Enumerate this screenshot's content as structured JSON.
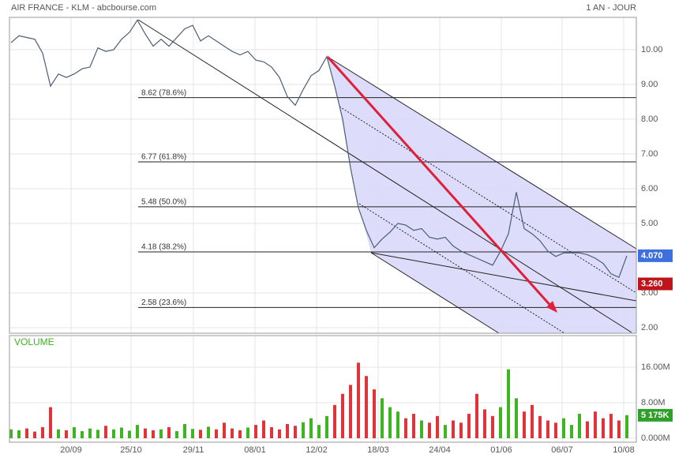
{
  "chart_data": [
    {
      "type": "line",
      "title": "AIR FRANCE - KLM - abcbourse.com",
      "subtitle": "1 AN - JOUR",
      "color": "#4a5d75",
      "x": [
        0,
        1,
        2,
        3,
        4,
        5,
        6,
        7,
        8,
        9,
        10,
        11,
        12,
        13,
        14,
        15,
        16,
        17,
        18,
        19,
        20,
        21,
        22,
        23,
        24,
        25,
        26,
        27,
        28,
        29,
        30,
        31,
        32,
        33,
        34,
        35,
        36,
        37,
        38,
        39,
        40,
        41,
        42,
        43,
        44,
        45,
        46,
        47,
        48,
        49,
        50,
        51,
        52,
        53,
        54,
        55,
        56,
        57,
        58,
        59,
        60,
        61,
        62,
        63,
        64,
        65,
        66,
        67,
        68,
        69,
        70,
        71,
        72,
        73,
        74,
        75,
        76,
        77,
        78
      ],
      "values": [
        10.2,
        10.4,
        10.35,
        10.3,
        9.9,
        8.95,
        9.3,
        9.2,
        9.3,
        9.45,
        9.5,
        10.05,
        9.95,
        10.0,
        10.3,
        10.5,
        10.85,
        10.45,
        10.1,
        10.3,
        10.1,
        10.35,
        10.6,
        10.7,
        10.25,
        10.4,
        10.25,
        10.1,
        9.95,
        9.85,
        9.95,
        9.7,
        9.65,
        9.5,
        9.2,
        8.65,
        8.4,
        8.85,
        9.25,
        9.4,
        9.8,
        8.95,
        8.0,
        6.6,
        5.45,
        4.8,
        4.3,
        4.55,
        4.75,
        5.0,
        4.95,
        4.8,
        4.85,
        4.6,
        4.55,
        4.6,
        4.35,
        4.2,
        4.1,
        4.0,
        3.9,
        3.8,
        4.2,
        4.7,
        5.9,
        4.85,
        4.7,
        4.5,
        4.2,
        4.05,
        4.15,
        4.15,
        4.15,
        4.1,
        4.0,
        3.85,
        3.55,
        3.45,
        4.07
      ],
      "xlim": [
        0,
        78.6
      ],
      "xticks": [
        {
          "value": 7.6,
          "label": "20/09"
        },
        {
          "value": 15.2,
          "label": "25/10"
        },
        {
          "value": 23.1,
          "label": "29/11"
        },
        {
          "value": 30.9,
          "label": "08/01"
        },
        {
          "value": 38.7,
          "label": "12/02"
        },
        {
          "value": 46.5,
          "label": "18/03"
        },
        {
          "value": 54.3,
          "label": "24/04"
        },
        {
          "value": 62.1,
          "label": "01/06"
        },
        {
          "value": 69.8,
          "label": "06/07"
        },
        {
          "value": 77.6,
          "label": "10/08"
        }
      ],
      "ylim": [
        1.84,
        10.93
      ],
      "yticks": [
        {
          "value": 2,
          "label": "2.00"
        },
        {
          "value": 3,
          "label": "3.00"
        },
        {
          "value": 5,
          "label": "5.00"
        },
        {
          "value": 6,
          "label": "6.00"
        },
        {
          "value": 7,
          "label": "7.00"
        },
        {
          "value": 8,
          "label": "8.00"
        },
        {
          "value": 9,
          "label": "9.00"
        },
        {
          "value": 10,
          "label": "10.00"
        }
      ],
      "fib_start_x": 16.1,
      "fib_levels": [
        {
          "value": 8.62,
          "label": "8.62  (78.6%)"
        },
        {
          "value": 6.77,
          "label": "6.77  (61.8%)"
        },
        {
          "value": 5.48,
          "label": "5.48  (50.0%)"
        },
        {
          "value": 4.18,
          "label": "4.18  (38.2%)"
        },
        {
          "value": 2.58,
          "label": "2.58  (23.6%)"
        }
      ],
      "last_value": {
        "value": 4.07,
        "label": "4.070",
        "color": "#3d6fe0"
      },
      "marker_value": {
        "value": 3.26,
        "label": "3.260",
        "color": "#c0141c"
      },
      "grid": true
    },
    {
      "type": "bar",
      "title": "VOLUME",
      "up_color": "#3cb521",
      "down_color": "#e0343a",
      "values": [
        2.0,
        1.8,
        2.2,
        1.5,
        2.5,
        7.0,
        2.0,
        1.8,
        2.5,
        1.6,
        2.2,
        1.9,
        2.8,
        2.0,
        2.4,
        1.7,
        3.0,
        2.2,
        1.8,
        2.0,
        2.5,
        1.6,
        3.2,
        2.1,
        1.9,
        2.6,
        2.0,
        3.5,
        2.2,
        1.8,
        2.4,
        3.0,
        4.0,
        2.5,
        2.0,
        3.2,
        2.8,
        3.6,
        4.5,
        3.0,
        5.0,
        7.5,
        10.0,
        12.0,
        17.0,
        14.0,
        11.0,
        9.0,
        7.0,
        6.0,
        4.5,
        5.5,
        4.0,
        3.5,
        5.0,
        3.0,
        4.0,
        3.5,
        5.5,
        10.0,
        6.5,
        5.0,
        7.0,
        15.5,
        9.0,
        6.0,
        7.5,
        5.0,
        4.0,
        3.5,
        4.5,
        3.0,
        5.5,
        3.8,
        6.0,
        4.5,
        5.5,
        4.0,
        5.2
      ],
      "ylim": [
        0,
        23.1
      ],
      "yticks": [
        {
          "value": 0,
          "label": "0.000M"
        },
        {
          "value": 8,
          "label": "8.00M"
        },
        {
          "value": 16,
          "label": "16.00M"
        }
      ],
      "last_value": {
        "value": 5.175,
        "label": "5 175K",
        "color": "#2ea02a"
      },
      "grid": true
    }
  ]
}
